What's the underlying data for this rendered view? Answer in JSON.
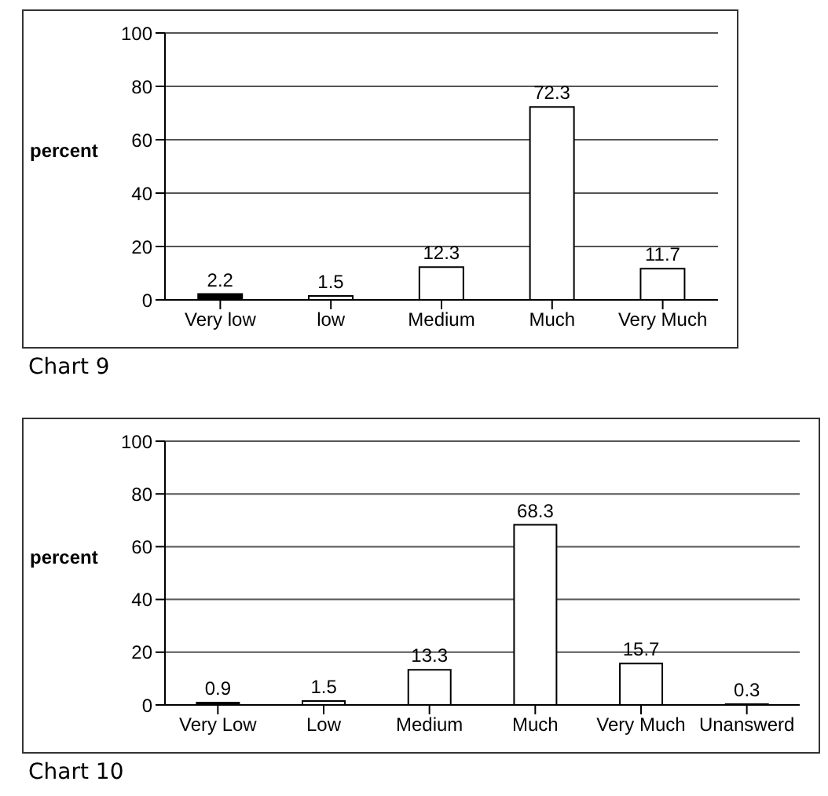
{
  "chart_data": [
    {
      "type": "bar",
      "title": "Chart 9",
      "ylabel": "percent",
      "categories": [
        "Very low",
        "low",
        "Medium",
        "Much",
        "Very Much"
      ],
      "values": [
        2.2,
        1.5,
        12.3,
        72.3,
        11.7
      ],
      "colors": [
        "#000000",
        "#ffffff",
        "#ffffff",
        "#ffffff",
        "#ffffff"
      ],
      "ylim": [
        0,
        100
      ],
      "yticks": [
        0,
        20,
        40,
        60,
        80,
        100
      ],
      "grid": "y",
      "data_labels": true
    },
    {
      "type": "bar",
      "title": "Chart 10",
      "ylabel": "percent",
      "categories": [
        "Very  Low",
        "Low",
        "Medium",
        "Much",
        "Very Much",
        "Unanswerd"
      ],
      "values": [
        0.9,
        1.5,
        13.3,
        68.3,
        15.7,
        0.3
      ],
      "colors": [
        "#000000",
        "#ffffff",
        "#ffffff",
        "#ffffff",
        "#ffffff",
        "#ffffff"
      ],
      "ylim": [
        0,
        100
      ],
      "yticks": [
        0,
        20,
        40,
        60,
        80,
        100
      ],
      "grid": "y",
      "data_labels": true
    }
  ]
}
